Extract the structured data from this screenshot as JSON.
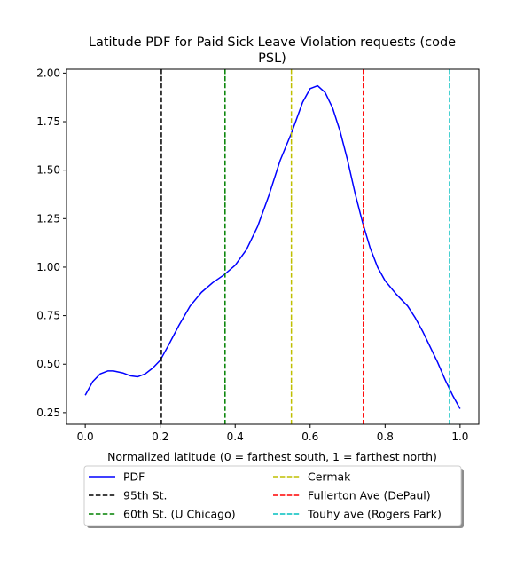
{
  "chart_data": {
    "type": "line",
    "title_lines": [
      "Latitude PDF for Paid Sick Leave Violation  requests (code",
      "PSL)"
    ],
    "xlabel": "Normalized latitude (0 = farthest south, 1 = farthest north)",
    "ylabel": "",
    "xlim": [
      -0.05,
      1.05
    ],
    "ylim": [
      0.19,
      2.02
    ],
    "xticks": [
      0.0,
      0.2,
      0.4,
      0.6,
      0.8,
      1.0
    ],
    "xtick_labels": [
      "0.0",
      "0.2",
      "0.4",
      "0.6",
      "0.8",
      "1.0"
    ],
    "yticks": [
      0.25,
      0.5,
      0.75,
      1.0,
      1.25,
      1.5,
      1.75,
      2.0
    ],
    "ytick_labels": [
      "0.25",
      "0.50",
      "0.75",
      "1.00",
      "1.25",
      "1.50",
      "1.75",
      "2.00"
    ],
    "grid": false,
    "legend_position": "bottom-center",
    "series": [
      {
        "name": "PDF",
        "color": "#0000ff",
        "style": "solid",
        "x": [
          0.0,
          0.02,
          0.04,
          0.06,
          0.075,
          0.1,
          0.12,
          0.14,
          0.16,
          0.18,
          0.2,
          0.22,
          0.25,
          0.28,
          0.31,
          0.34,
          0.37,
          0.4,
          0.43,
          0.46,
          0.49,
          0.52,
          0.55,
          0.58,
          0.6,
          0.62,
          0.64,
          0.66,
          0.68,
          0.7,
          0.72,
          0.74,
          0.76,
          0.78,
          0.8,
          0.83,
          0.86,
          0.88,
          0.9,
          0.92,
          0.94,
          0.96,
          0.98,
          1.0
        ],
        "y": [
          0.34,
          0.41,
          0.45,
          0.465,
          0.465,
          0.455,
          0.44,
          0.435,
          0.45,
          0.48,
          0.52,
          0.59,
          0.7,
          0.8,
          0.87,
          0.92,
          0.96,
          1.01,
          1.09,
          1.21,
          1.37,
          1.55,
          1.69,
          1.85,
          1.92,
          1.935,
          1.9,
          1.82,
          1.7,
          1.55,
          1.38,
          1.23,
          1.1,
          1.0,
          0.93,
          0.86,
          0.8,
          0.74,
          0.67,
          0.59,
          0.51,
          0.42,
          0.34,
          0.27
        ]
      },
      {
        "name": "95th St.",
        "color": "#000000",
        "style": "dashed",
        "vline": 0.203
      },
      {
        "name": "60th St. (U Chicago)",
        "color": "#008000",
        "style": "dashed",
        "vline": 0.373
      },
      {
        "name": "Cermak",
        "color": "#bfbf00",
        "style": "dashed",
        "vline": 0.55
      },
      {
        "name": "Fullerton Ave (DePaul)",
        "color": "#ff0000",
        "style": "dashed",
        "vline": 0.742
      },
      {
        "name": "Touhy ave (Rogers Park)",
        "color": "#00bfbf",
        "style": "dashed",
        "vline": 0.972
      }
    ]
  }
}
